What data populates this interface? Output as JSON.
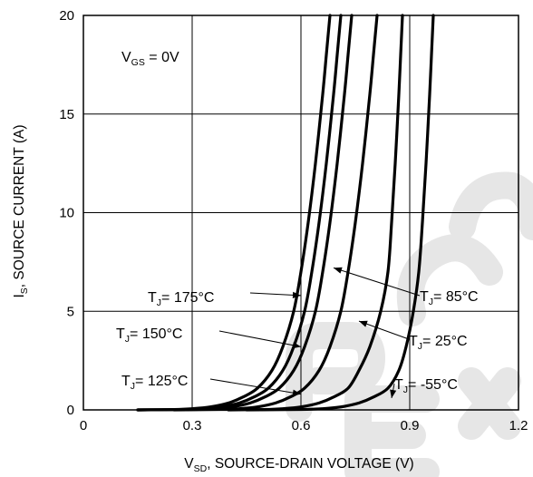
{
  "chart_data": {
    "type": "line",
    "xlabel": {
      "main": "V",
      "sub": "SD",
      "rest": ", SOURCE-DRAIN VOLTAGE (V)"
    },
    "ylabel": {
      "main": "I",
      "sub": "S",
      "rest": ", SOURCE CURRENT (A)"
    },
    "xlim": [
      0,
      1.2
    ],
    "ylim": [
      0,
      20
    ],
    "x_ticks": [
      "0",
      "0.3",
      "0.6",
      "0.9",
      "1.2"
    ],
    "y_ticks": [
      "0",
      "5",
      "10",
      "15",
      "20"
    ],
    "x_tick_values": [
      0,
      0.3,
      0.6,
      0.9,
      1.2
    ],
    "y_tick_values": [
      0,
      5,
      10,
      15,
      20
    ],
    "grid": true,
    "condition": {
      "main": "V",
      "sub": "GS",
      "rest": " = 0V"
    },
    "series": [
      {
        "name": "T_J= 175°C",
        "label": {
          "main": "T",
          "sub": "J",
          "rest": "= 175°C"
        },
        "x": [
          0.15,
          0.25,
          0.3,
          0.35,
          0.4,
          0.44,
          0.48,
          0.52,
          0.55,
          0.58,
          0.6,
          0.62,
          0.64,
          0.66,
          0.67,
          0.68
        ],
        "y": [
          0.0,
          0.02,
          0.06,
          0.15,
          0.35,
          0.65,
          1.1,
          2.0,
          3.2,
          5.0,
          7.0,
          9.5,
          12.5,
          16.0,
          18.0,
          20.0
        ],
        "annotation_at": [
          0.6,
          5.8
        ]
      },
      {
        "name": "T_J= 150°C",
        "label": {
          "main": "T",
          "sub": "J",
          "rest": "= 150°C"
        },
        "x": [
          0.15,
          0.27,
          0.33,
          0.38,
          0.43,
          0.47,
          0.51,
          0.55,
          0.58,
          0.61,
          0.63,
          0.65,
          0.67,
          0.69,
          0.7,
          0.71
        ],
        "y": [
          0.0,
          0.02,
          0.06,
          0.15,
          0.35,
          0.65,
          1.1,
          2.0,
          3.2,
          5.0,
          7.0,
          9.5,
          12.5,
          16.0,
          18.0,
          20.0
        ],
        "annotation_at": [
          0.6,
          3.2
        ]
      },
      {
        "name": "T_J= 125°C",
        "label": {
          "main": "T",
          "sub": "J",
          "rest": "= 125°C"
        },
        "x": [
          0.15,
          0.3,
          0.36,
          0.41,
          0.46,
          0.5,
          0.54,
          0.58,
          0.61,
          0.64,
          0.66,
          0.68,
          0.7,
          0.72,
          0.73,
          0.74
        ],
        "y": [
          0.0,
          0.02,
          0.06,
          0.15,
          0.35,
          0.65,
          1.1,
          2.0,
          3.2,
          5.0,
          7.0,
          9.5,
          12.5,
          16.0,
          18.0,
          20.0
        ],
        "annotation_at": [
          0.6,
          0.8
        ]
      },
      {
        "name": "T_J= 85°C",
        "label": {
          "main": "T",
          "sub": "J",
          "rest": "= 85°C"
        },
        "x": [
          0.25,
          0.38,
          0.43,
          0.48,
          0.53,
          0.57,
          0.61,
          0.65,
          0.68,
          0.71,
          0.73,
          0.75,
          0.77,
          0.79,
          0.8,
          0.81
        ],
        "y": [
          0.0,
          0.02,
          0.06,
          0.15,
          0.35,
          0.65,
          1.1,
          2.0,
          3.2,
          5.0,
          7.0,
          9.5,
          12.5,
          16.0,
          18.0,
          20.0
        ],
        "annotation_at": [
          0.69,
          7.2
        ]
      },
      {
        "name": "T_J= 25°C",
        "label": {
          "main": "T",
          "sub": "J",
          "rest": "= 25°C"
        },
        "x": [
          0.4,
          0.5,
          0.55,
          0.6,
          0.65,
          0.69,
          0.73,
          0.76,
          0.79,
          0.82,
          0.84,
          0.85,
          0.86,
          0.87,
          0.875,
          0.88
        ],
        "y": [
          0.0,
          0.02,
          0.06,
          0.15,
          0.35,
          0.65,
          1.1,
          2.0,
          3.2,
          5.0,
          7.0,
          9.5,
          12.5,
          16.0,
          18.0,
          20.0
        ],
        "annotation_at": [
          0.76,
          4.5
        ]
      },
      {
        "name": "T_J= -55°C",
        "label": {
          "main": "T",
          "sub": "J",
          "rest": "= -55°C"
        },
        "x": [
          0.45,
          0.6,
          0.66,
          0.71,
          0.76,
          0.8,
          0.84,
          0.87,
          0.89,
          0.91,
          0.925,
          0.935,
          0.945,
          0.955,
          0.96,
          0.965
        ],
        "y": [
          0.0,
          0.02,
          0.06,
          0.15,
          0.35,
          0.65,
          1.1,
          2.0,
          3.2,
          5.0,
          7.0,
          9.5,
          12.5,
          16.0,
          18.0,
          20.0
        ],
        "annotation_at": [
          0.85,
          0.6
        ]
      }
    ]
  }
}
